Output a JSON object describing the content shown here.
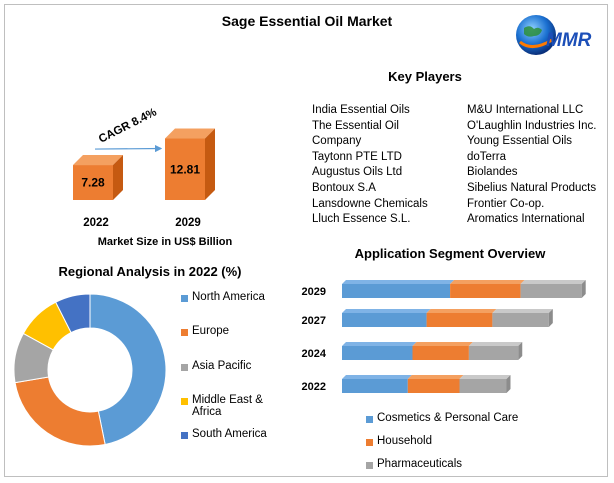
{
  "title": "Sage Essential Oil Market",
  "logo_text": "MMR",
  "market_size": {
    "cagr_label": "CAGR 8.4%",
    "caption": "Market Size in US$ Billion",
    "bars": [
      {
        "year": "2022",
        "value": 7.28,
        "label": "7.28"
      },
      {
        "year": "2029",
        "value": 12.81,
        "label": "12.81"
      }
    ]
  },
  "key_players": {
    "title": "Key Players",
    "left": [
      "India Essential Oils",
      "The Essential Oil",
      "Company",
      "Taytonn PTE LTD",
      "Augustus Oils Ltd",
      "Bontoux S.A",
      "Lansdowne Chemicals",
      "Lluch Essence S.L."
    ],
    "right": [
      "M&U International LLC",
      "O'Laughlin Industries Inc.",
      "Young Essential Oils",
      "doTerra",
      "Biolandes",
      "Sibelius Natural Products",
      "Frontier Co-op.",
      "Aromatics International"
    ]
  },
  "regional": {
    "title": "Regional Analysis in 2022 (%)",
    "legend": [
      {
        "label": "North America",
        "color": "#5b9bd5"
      },
      {
        "label": "Europe",
        "color": "#ed7d31"
      },
      {
        "label": "Asia Pacific",
        "color": "#a5a5a5"
      },
      {
        "label": "Middle East &",
        "label2": "Africa",
        "color": "#ffc000"
      },
      {
        "label": "South America",
        "color": "#4472c4"
      }
    ]
  },
  "application": {
    "title": "Application Segment Overview",
    "legend": [
      {
        "label": "Cosmetics & Personal Care",
        "color": "#5b9bd5"
      },
      {
        "label": "Household",
        "color": "#ed7d31"
      },
      {
        "label": "Pharmaceuticals",
        "color": "#a5a5a5"
      }
    ]
  },
  "chart_data": [
    {
      "type": "bar",
      "categories": [
        "2022",
        "2029"
      ],
      "values": [
        7.28,
        12.81
      ],
      "title": "",
      "xlabel": "Market Size in US$ Billion",
      "ylabel": "",
      "annotations": [
        "CAGR 8.4%"
      ]
    },
    {
      "type": "pie",
      "title": "Regional Analysis in 2022 (%)",
      "categories": [
        "North America",
        "Europe",
        "Asia Pacific",
        "Middle East & Africa",
        "South America"
      ],
      "values": [
        44,
        24,
        10,
        9,
        7
      ],
      "colors": [
        "#5b9bd5",
        "#ed7d31",
        "#a5a5a5",
        "#ffc000",
        "#4472c4"
      ],
      "legend": "right"
    },
    {
      "type": "bar",
      "title": "Application Segment Overview",
      "orientation": "horizontal",
      "stacked": true,
      "categories": [
        "2029",
        "2027",
        "2024",
        "2022"
      ],
      "series": [
        {
          "name": "Cosmetics & Personal Care",
          "values": [
            4.6,
            3.6,
            3.0,
            2.8
          ],
          "color": "#5b9bd5"
        },
        {
          "name": "Household",
          "values": [
            3.0,
            2.8,
            2.4,
            2.2
          ],
          "color": "#ed7d31"
        },
        {
          "name": "Pharmaceuticals",
          "values": [
            2.6,
            2.4,
            2.1,
            2.0
          ],
          "color": "#a5a5a5"
        }
      ],
      "legend": "bottom"
    }
  ]
}
